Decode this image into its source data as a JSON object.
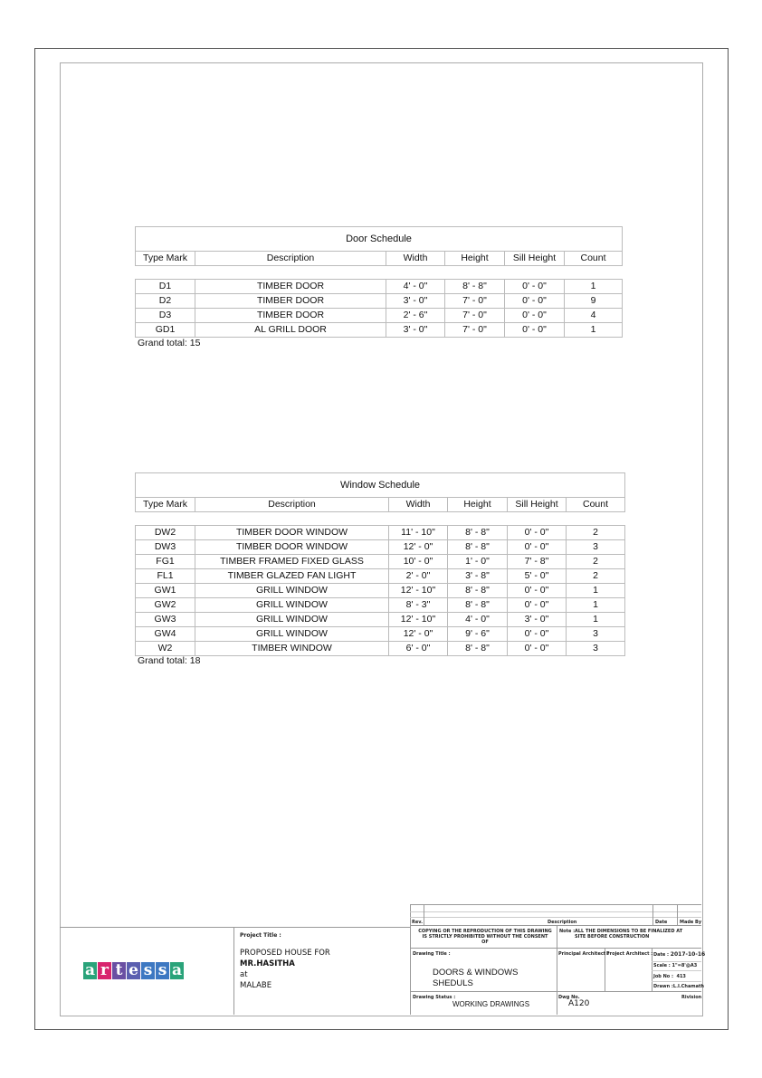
{
  "door_schedule": {
    "title": "Door Schedule",
    "headers": [
      "Type Mark",
      "Description",
      "Width",
      "Height",
      "Sill Height",
      "Count"
    ],
    "rows": [
      [
        "D1",
        "TIMBER DOOR",
        "4' - 0\"",
        "8' - 8\"",
        "0' - 0\"",
        "1"
      ],
      [
        "D2",
        "TIMBER DOOR",
        "3' - 0\"",
        "7' - 0\"",
        "0' - 0\"",
        "9"
      ],
      [
        "D3",
        "TIMBER DOOR",
        "2' - 6\"",
        "7' - 0\"",
        "0' - 0\"",
        "4"
      ],
      [
        "GD1",
        "AL GRILL DOOR",
        "3' - 0\"",
        "7' - 0\"",
        "0' - 0\"",
        "1"
      ]
    ],
    "grand_total": "Grand total: 15"
  },
  "window_schedule": {
    "title": "Window Schedule",
    "headers": [
      "Type Mark",
      "Description",
      "Width",
      "Height",
      "Sill Height",
      "Count"
    ],
    "rows": [
      [
        "DW2",
        "TIMBER DOOR WINDOW",
        "11' - 10\"",
        "8' - 8\"",
        "0' - 0\"",
        "2"
      ],
      [
        "DW3",
        "TIMBER DOOR WINDOW",
        "12' - 0\"",
        "8' - 8\"",
        "0' - 0\"",
        "3"
      ],
      [
        "FG1",
        "TIMBER FRAMED FIXED GLASS",
        "10' - 0\"",
        "1' - 0\"",
        "7' - 8\"",
        "2"
      ],
      [
        "FL1",
        "TIMBER GLAZED FAN LIGHT",
        "2' - 0\"",
        "3' - 8\"",
        "5' - 0\"",
        "2"
      ],
      [
        "GW1",
        "GRILL WINDOW",
        "12' - 10\"",
        "8' - 8\"",
        "0' - 0\"",
        "1"
      ],
      [
        "GW2",
        "GRILL WINDOW",
        "8' - 3\"",
        "8' - 8\"",
        "0' - 0\"",
        "1"
      ],
      [
        "GW3",
        "GRILL WINDOW",
        "12' - 10\"",
        "4' - 0\"",
        "3' - 0\"",
        "1"
      ],
      [
        "GW4",
        "GRILL WINDOW",
        "12' - 0\"",
        "9' - 6\"",
        "0' - 0\"",
        "3"
      ],
      [
        "W2",
        "TIMBER WINDOW",
        "6' - 0\"",
        "8' - 8\"",
        "0' - 0\"",
        "3"
      ]
    ],
    "grand_total": "Grand total: 18"
  },
  "title_block": {
    "logo": {
      "text": "artessa",
      "letters": [
        "a",
        "r",
        "t",
        "e",
        "s",
        "s",
        "a"
      ],
      "colors": [
        "#2aa37a",
        "#d8246e",
        "#6a4fa3",
        "#5b5fb0",
        "#3d78c2",
        "#3d78c2",
        "#2aa37a"
      ]
    },
    "project_title_label": "Project Title :",
    "project_lines": [
      "PROPOSED HOUSE FOR",
      "MR.HASITHA",
      "at",
      "MALABE"
    ],
    "rev_label": "Rev.",
    "description_label": "Description",
    "date_col_label": "Date",
    "made_by_label": "Made By",
    "copyright": "COPYING OR THE REPRODUCTION OF THIS DRAWING IS STRICTLY PROHIBITED WITHOUT THE CONSENT OF",
    "note_label": "Note :",
    "note": "ALL THE DIMENSIONS TO BE FINALIZED AT SITE BEFORE CONSTRUCTION",
    "drawing_title_label": "Drawing Title :",
    "drawing_title_lines": [
      "DOORS & WINDOWS",
      "SHEDULS"
    ],
    "principal_architect_label": "Principal Architect :",
    "project_architect_label": "Project Architect :",
    "date_label": "Date :",
    "date": "2017-10-16",
    "scale_label": "Scale :",
    "scale": "1\"=8'@A3",
    "job_label": "Job No :",
    "job_no": "413",
    "drawn_label": "Drawn :",
    "drawn": "L.I.Chamath",
    "drawing_status_label": "Drawing Status :",
    "drawing_status": "WORKING DRAWINGS",
    "dwg_no_label": "Dwg No.",
    "dwg_no": "A120",
    "revision_label": "Rivision"
  }
}
